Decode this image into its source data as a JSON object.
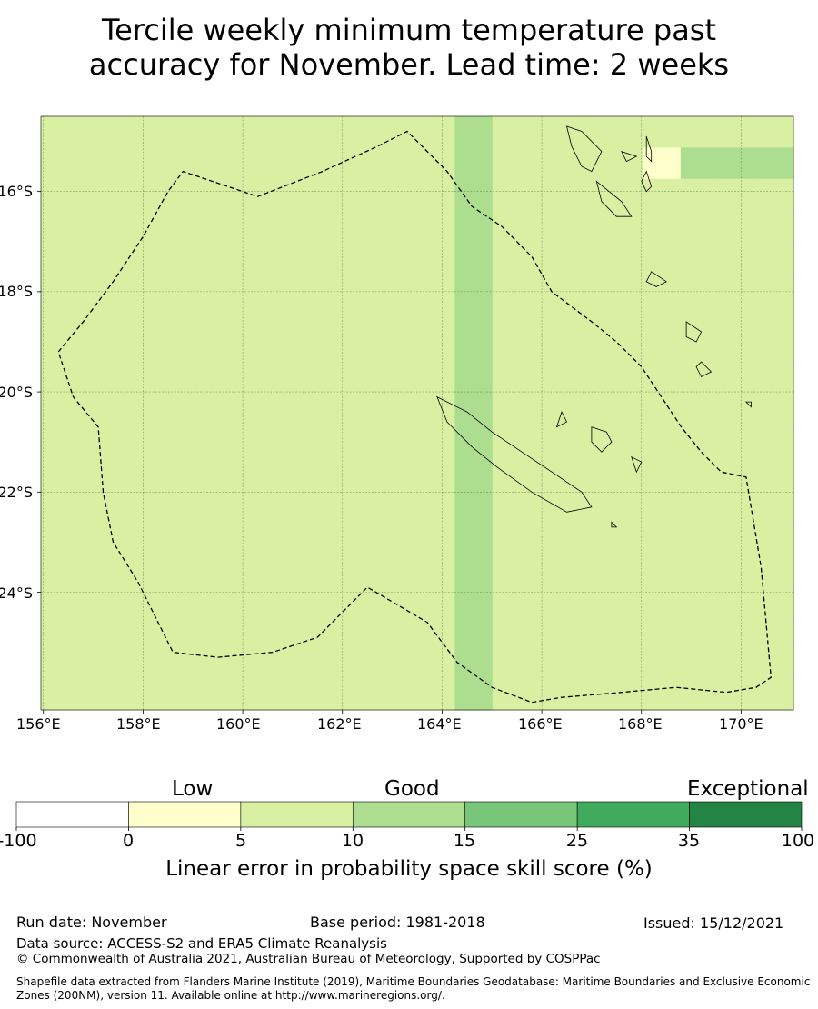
{
  "title": {
    "line1": "Tercile weekly minimum temperature past",
    "line2": "accuracy for November. Lead time: 2 weeks"
  },
  "map": {
    "lon_labels": [
      "156°E",
      "158°E",
      "160°E",
      "162°E",
      "164°E",
      "166°E",
      "168°E",
      "170°E"
    ],
    "lat_labels": [
      "16°S",
      "18°S",
      "20°S",
      "22°S",
      "24°S"
    ],
    "lon_range": [
      155.95,
      171.05
    ],
    "lat_range": [
      -14.5,
      -26.35
    ],
    "cell_size_deg": 0.833,
    "grid_lons": [
      156,
      158,
      160,
      162,
      164,
      166,
      168,
      170
    ],
    "grid_lats": [
      -16,
      -18,
      -20,
      -22,
      -24
    ],
    "eez_boundary": [
      [
        156.3,
        -19.2
      ],
      [
        156.8,
        -18.6
      ],
      [
        157.4,
        -17.8
      ],
      [
        158.0,
        -16.9
      ],
      [
        158.5,
        -16.0
      ],
      [
        158.8,
        -15.6
      ],
      [
        160.3,
        -16.1
      ],
      [
        161.6,
        -15.6
      ],
      [
        162.7,
        -15.1
      ],
      [
        163.3,
        -14.8
      ],
      [
        164.1,
        -15.6
      ],
      [
        164.6,
        -16.3
      ],
      [
        165.2,
        -16.7
      ],
      [
        165.8,
        -17.3
      ],
      [
        166.2,
        -18.0
      ],
      [
        167.0,
        -18.6
      ],
      [
        167.5,
        -19.0
      ],
      [
        168.0,
        -19.5
      ],
      [
        168.4,
        -20.1
      ],
      [
        168.8,
        -20.7
      ],
      [
        169.2,
        -21.2
      ],
      [
        169.6,
        -21.6
      ],
      [
        170.1,
        -21.7
      ],
      [
        170.4,
        -23.5
      ],
      [
        170.6,
        -25.7
      ],
      [
        170.3,
        -25.9
      ],
      [
        169.7,
        -26.0
      ],
      [
        168.7,
        -25.9
      ],
      [
        167.6,
        -26.0
      ],
      [
        166.4,
        -26.1
      ],
      [
        165.8,
        -26.2
      ],
      [
        165.0,
        -25.9
      ],
      [
        164.3,
        -25.4
      ],
      [
        163.7,
        -24.6
      ],
      [
        162.5,
        -23.9
      ],
      [
        162.1,
        -24.3
      ],
      [
        161.5,
        -24.9
      ],
      [
        160.6,
        -25.2
      ],
      [
        159.5,
        -25.3
      ],
      [
        158.6,
        -25.2
      ],
      [
        157.9,
        -23.8
      ],
      [
        157.4,
        -23.0
      ],
      [
        157.2,
        -22.0
      ],
      [
        157.1,
        -20.7
      ],
      [
        156.6,
        -20.1
      ],
      [
        156.3,
        -19.2
      ]
    ],
    "islands": [
      [
        [
          163.9,
          -20.1
        ],
        [
          164.5,
          -20.4
        ],
        [
          165.0,
          -20.8
        ],
        [
          165.6,
          -21.2
        ],
        [
          166.2,
          -21.6
        ],
        [
          166.8,
          -22.0
        ],
        [
          167.0,
          -22.3
        ],
        [
          166.5,
          -22.4
        ],
        [
          165.8,
          -22.0
        ],
        [
          165.1,
          -21.5
        ],
        [
          164.6,
          -21.1
        ],
        [
          164.1,
          -20.6
        ],
        [
          163.9,
          -20.1
        ]
      ],
      [
        [
          166.5,
          -14.7
        ],
        [
          166.8,
          -14.8
        ],
        [
          167.2,
          -15.2
        ],
        [
          167.0,
          -15.6
        ],
        [
          166.8,
          -15.5
        ],
        [
          166.6,
          -15.1
        ],
        [
          166.5,
          -14.7
        ]
      ],
      [
        [
          167.1,
          -15.8
        ],
        [
          167.6,
          -16.2
        ],
        [
          167.8,
          -16.5
        ],
        [
          167.5,
          -16.5
        ],
        [
          167.2,
          -16.2
        ],
        [
          167.1,
          -15.8
        ]
      ],
      [
        [
          168.1,
          -15.6
        ],
        [
          168.2,
          -15.9
        ],
        [
          168.1,
          -16.0
        ],
        [
          168.0,
          -15.8
        ],
        [
          168.1,
          -15.6
        ]
      ],
      [
        [
          168.1,
          -14.9
        ],
        [
          168.2,
          -15.2
        ],
        [
          168.2,
          -15.4
        ],
        [
          168.1,
          -15.3
        ],
        [
          168.1,
          -14.9
        ]
      ],
      [
        [
          167.6,
          -15.2
        ],
        [
          167.9,
          -15.3
        ],
        [
          167.7,
          -15.4
        ],
        [
          167.6,
          -15.2
        ]
      ],
      [
        [
          168.2,
          -17.6
        ],
        [
          168.5,
          -17.8
        ],
        [
          168.3,
          -17.9
        ],
        [
          168.1,
          -17.8
        ],
        [
          168.2,
          -17.6
        ]
      ],
      [
        [
          168.9,
          -18.6
        ],
        [
          169.2,
          -18.8
        ],
        [
          169.1,
          -19.0
        ],
        [
          168.9,
          -18.9
        ],
        [
          168.9,
          -18.6
        ]
      ],
      [
        [
          169.2,
          -19.4
        ],
        [
          169.4,
          -19.6
        ],
        [
          169.2,
          -19.7
        ],
        [
          169.1,
          -19.5
        ],
        [
          169.2,
          -19.4
        ]
      ],
      [
        [
          167.0,
          -20.7
        ],
        [
          167.3,
          -20.8
        ],
        [
          167.4,
          -21.0
        ],
        [
          167.2,
          -21.2
        ],
        [
          167.0,
          -21.0
        ],
        [
          167.0,
          -20.7
        ]
      ],
      [
        [
          167.8,
          -21.3
        ],
        [
          168.0,
          -21.4
        ],
        [
          167.9,
          -21.6
        ],
        [
          167.8,
          -21.3
        ]
      ],
      [
        [
          166.4,
          -20.4
        ],
        [
          166.5,
          -20.6
        ],
        [
          166.3,
          -20.7
        ],
        [
          166.4,
          -20.4
        ]
      ],
      [
        [
          167.4,
          -22.6
        ],
        [
          167.5,
          -22.7
        ],
        [
          167.4,
          -22.7
        ],
        [
          167.4,
          -22.6
        ]
      ],
      [
        [
          170.2,
          -20.2
        ],
        [
          170.2,
          -20.3
        ],
        [
          170.1,
          -20.2
        ],
        [
          170.2,
          -20.2
        ]
      ]
    ],
    "cells": [
      "22222222222322222222",
      "22222222222322221333",
      "22222222222322222222",
      "22222222222322222222",
      "22222222222322222222",
      "22222222222322222222",
      "22222222222322222222",
      "22222222222322222222",
      "22222222222322222222",
      "22222222222322222222",
      "22222222222322222222",
      "22222222222322222222",
      "22222222222322222222",
      "22222222222322222222",
      "22222222222322222222",
      "22222222222322222222",
      "22222222222322222222",
      "22222222222322222222",
      "22222222222322222222"
    ]
  },
  "colorbar": {
    "categories": [
      "Low",
      "Good",
      "Exceptional"
    ],
    "ticks": [
      "-100",
      "0",
      "5",
      "10",
      "15",
      "25",
      "35",
      "100"
    ],
    "colors": [
      "#ffffff",
      "#ffffcc",
      "#d9f0a3",
      "#addd8e",
      "#78c679",
      "#41ab5d",
      "#238443"
    ],
    "label": "Linear error in probability space skill score (%)"
  },
  "footer": {
    "run_date": "Run date: November",
    "base_period": "Base period: 1981-2018",
    "issued": "Issued: 15/12/2021",
    "data_source": "Data source: ACCESS-S2 and ERA5 Climate Reanalysis",
    "copyright": "© Commonwealth of Australia 2021, Australian Bureau of Meteorology, Supported by COSPPac",
    "shapefile": "Shapefile data extracted from Flanders Marine Institute (2019), Maritime Boundaries Geodatabase: Maritime Boundaries and Exclusive Economic Zones (200NM), version 11. Available online at http://www.marineregions.org/."
  }
}
